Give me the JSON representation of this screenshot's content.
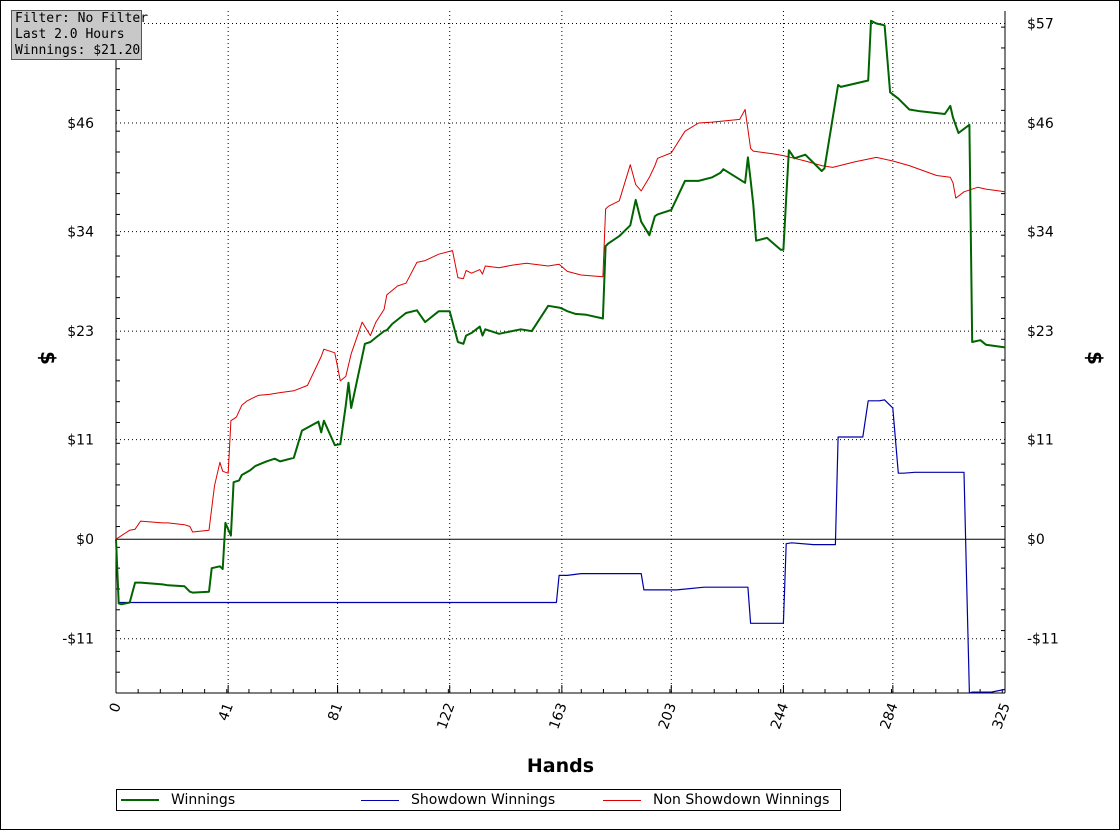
{
  "info_box": {
    "filter": "Filter: No Filter",
    "period": "Last 2.0 Hours",
    "winnings": "Winnings: $21.20"
  },
  "colors": {
    "winnings": "#006400",
    "showdown": "#0000aa",
    "non_showdown": "#dd0000",
    "grid": "#000000"
  },
  "legend": [
    {
      "label": "Winnings",
      "color": "#006400"
    },
    {
      "label": "Showdown Winnings",
      "color": "#0000aa"
    },
    {
      "label": "Non Showdown Winnings",
      "color": "#dd0000"
    }
  ],
  "chart_data": {
    "type": "line",
    "xlabel": "Hands",
    "ylabel": "$",
    "xlim": [
      0,
      325
    ],
    "ylim": [
      -17,
      57.5
    ],
    "x_ticks": [
      0,
      41,
      81,
      122,
      163,
      203,
      244,
      284,
      325
    ],
    "y_ticks": [
      {
        "value": 57,
        "label": "$57"
      },
      {
        "value": 46,
        "label": "$46"
      },
      {
        "value": 34,
        "label": "$34"
      },
      {
        "value": 23,
        "label": "$23"
      },
      {
        "value": 11,
        "label": "$11"
      },
      {
        "value": 0,
        "label": "$0"
      },
      {
        "value": -11,
        "label": "-$11"
      }
    ],
    "grid": true,
    "legend_position": "bottom",
    "series": [
      {
        "name": "Winnings",
        "color": "#006400",
        "x": [
          0,
          1,
          2,
          5,
          7,
          9,
          17,
          19,
          25,
          27,
          28,
          34,
          35,
          38,
          39,
          40,
          42,
          43,
          45,
          46,
          49,
          51,
          55,
          58,
          60,
          65,
          68,
          74,
          75,
          76,
          80,
          82,
          84,
          85,
          86,
          91,
          93,
          95,
          98,
          99,
          101,
          106,
          110,
          113,
          118,
          122,
          125,
          127,
          128,
          130,
          133,
          134,
          135,
          140,
          148,
          152,
          158,
          162,
          163,
          165,
          168,
          172,
          178,
          179,
          180,
          184,
          188,
          190,
          192,
          195,
          197,
          198,
          203,
          208,
          213,
          218,
          221,
          222,
          230,
          231,
          232,
          233,
          234,
          238,
          243,
          244,
          245,
          246,
          248,
          252,
          258,
          259,
          264,
          265,
          275,
          276,
          278,
          281,
          283,
          286,
          290,
          294,
          303,
          305,
          306,
          308,
          312,
          313,
          316,
          318,
          325
        ],
        "y": [
          0,
          -7.1,
          -7.2,
          -7.0,
          -4.8,
          -4.8,
          -5.0,
          -5.1,
          -5.2,
          -5.8,
          -5.9,
          -5.8,
          -3.2,
          -3.0,
          -3.3,
          1.8,
          0.4,
          6.3,
          6.5,
          7.1,
          7.6,
          8.1,
          8.6,
          8.9,
          8.6,
          9.0,
          12.0,
          13.0,
          11.8,
          13.1,
          10.4,
          10.5,
          14.8,
          17.3,
          14.5,
          21.6,
          21.8,
          22.3,
          23.0,
          23.1,
          23.8,
          25.0,
          25.3,
          24.0,
          25.2,
          25.2,
          21.8,
          21.6,
          22.5,
          22.8,
          23.5,
          22.5,
          23.2,
          22.7,
          23.2,
          23.0,
          25.8,
          25.6,
          25.5,
          25.2,
          24.9,
          24.8,
          24.4,
          32.4,
          32.7,
          33.5,
          34.7,
          37.5,
          35.1,
          33.6,
          35.7,
          35.9,
          36.4,
          39.6,
          39.6,
          40.0,
          40.5,
          40.9,
          39.4,
          42.2,
          39.7,
          37.0,
          33.0,
          33.3,
          32.0,
          32.0,
          37.7,
          43.0,
          42.1,
          42.5,
          40.7,
          41.0,
          50.2,
          50.0,
          50.7,
          57.3,
          57.0,
          56.8,
          49.4,
          48.7,
          47.5,
          47.3,
          47.0,
          47.9,
          46.6,
          44.9,
          45.8,
          21.8,
          22.0,
          21.5,
          21.2
        ]
      },
      {
        "name": "Showdown Winnings",
        "color": "#0000aa",
        "x": [
          0,
          1,
          2,
          5,
          160,
          161,
          162,
          163,
          165,
          170,
          180,
          192,
          193,
          200,
          205,
          215,
          230,
          231,
          232,
          242,
          244,
          245,
          247,
          255,
          263,
          264,
          272,
          273,
          275,
          279,
          281,
          284,
          286,
          287,
          288,
          292,
          310,
          311,
          312,
          313,
          320,
          325
        ],
        "y": [
          0,
          -7.0,
          -7.0,
          -7.0,
          -7.0,
          -7.0,
          -4.0,
          -4.0,
          -4.0,
          -3.8,
          -3.8,
          -3.8,
          -5.6,
          -5.6,
          -5.6,
          -5.3,
          -5.3,
          -5.3,
          -9.3,
          -9.3,
          -9.3,
          -0.5,
          -0.4,
          -0.6,
          -0.6,
          11.3,
          11.3,
          11.3,
          15.3,
          15.3,
          15.4,
          14.5,
          7.3,
          7.3,
          7.3,
          7.4,
          7.4,
          -5.0,
          -17.0,
          -16.9,
          -16.9,
          -16.6
        ]
      },
      {
        "name": "Non Showdown Winnings",
        "color": "#dd0000",
        "x": [
          0,
          5,
          7,
          9,
          17,
          19,
          25,
          27,
          28,
          34,
          36,
          38,
          39,
          41,
          42,
          44,
          46,
          48,
          52,
          56,
          60,
          65,
          70,
          75,
          76,
          80,
          82,
          84,
          86,
          90,
          93,
          95,
          98,
          99,
          103,
          106,
          110,
          113,
          118,
          123,
          125,
          127,
          128,
          130,
          133,
          134,
          135,
          140,
          145,
          150,
          158,
          162,
          165,
          170,
          178,
          179,
          180,
          184,
          188,
          190,
          192,
          195,
          197,
          198,
          203,
          208,
          213,
          218,
          228,
          230,
          232,
          233,
          240,
          244,
          248,
          252,
          258,
          262,
          270,
          278,
          284,
          290,
          300,
          305,
          306,
          307,
          310,
          315,
          318,
          325
        ],
        "y": [
          0,
          1,
          1.1,
          2.0,
          1.8,
          1.8,
          1.6,
          1.4,
          0.8,
          1.0,
          5.9,
          8.5,
          7.5,
          7.3,
          13.1,
          13.5,
          14.8,
          15.3,
          15.9,
          16.0,
          16.2,
          16.4,
          17.0,
          20.2,
          21.0,
          20.6,
          17.5,
          18.0,
          20.5,
          24.0,
          22.5,
          24.0,
          25.4,
          27.0,
          28.0,
          28.3,
          30.6,
          30.8,
          31.5,
          31.9,
          28.9,
          28.8,
          29.7,
          29.4,
          29.8,
          29.3,
          30.2,
          30.0,
          30.3,
          30.5,
          30.2,
          30.4,
          29.6,
          29.2,
          29.0,
          36.5,
          36.8,
          37.4,
          41.4,
          39.2,
          38.5,
          40.0,
          41.3,
          42.1,
          42.7,
          45.1,
          46.0,
          46.1,
          46.4,
          47.5,
          43.2,
          42.9,
          42.6,
          42.4,
          42.1,
          41.8,
          41.3,
          41.1,
          41.7,
          42.2,
          41.8,
          41.3,
          40.2,
          40.0,
          39.4,
          37.7,
          38.4,
          38.9,
          38.7,
          38.4
        ]
      }
    ]
  }
}
